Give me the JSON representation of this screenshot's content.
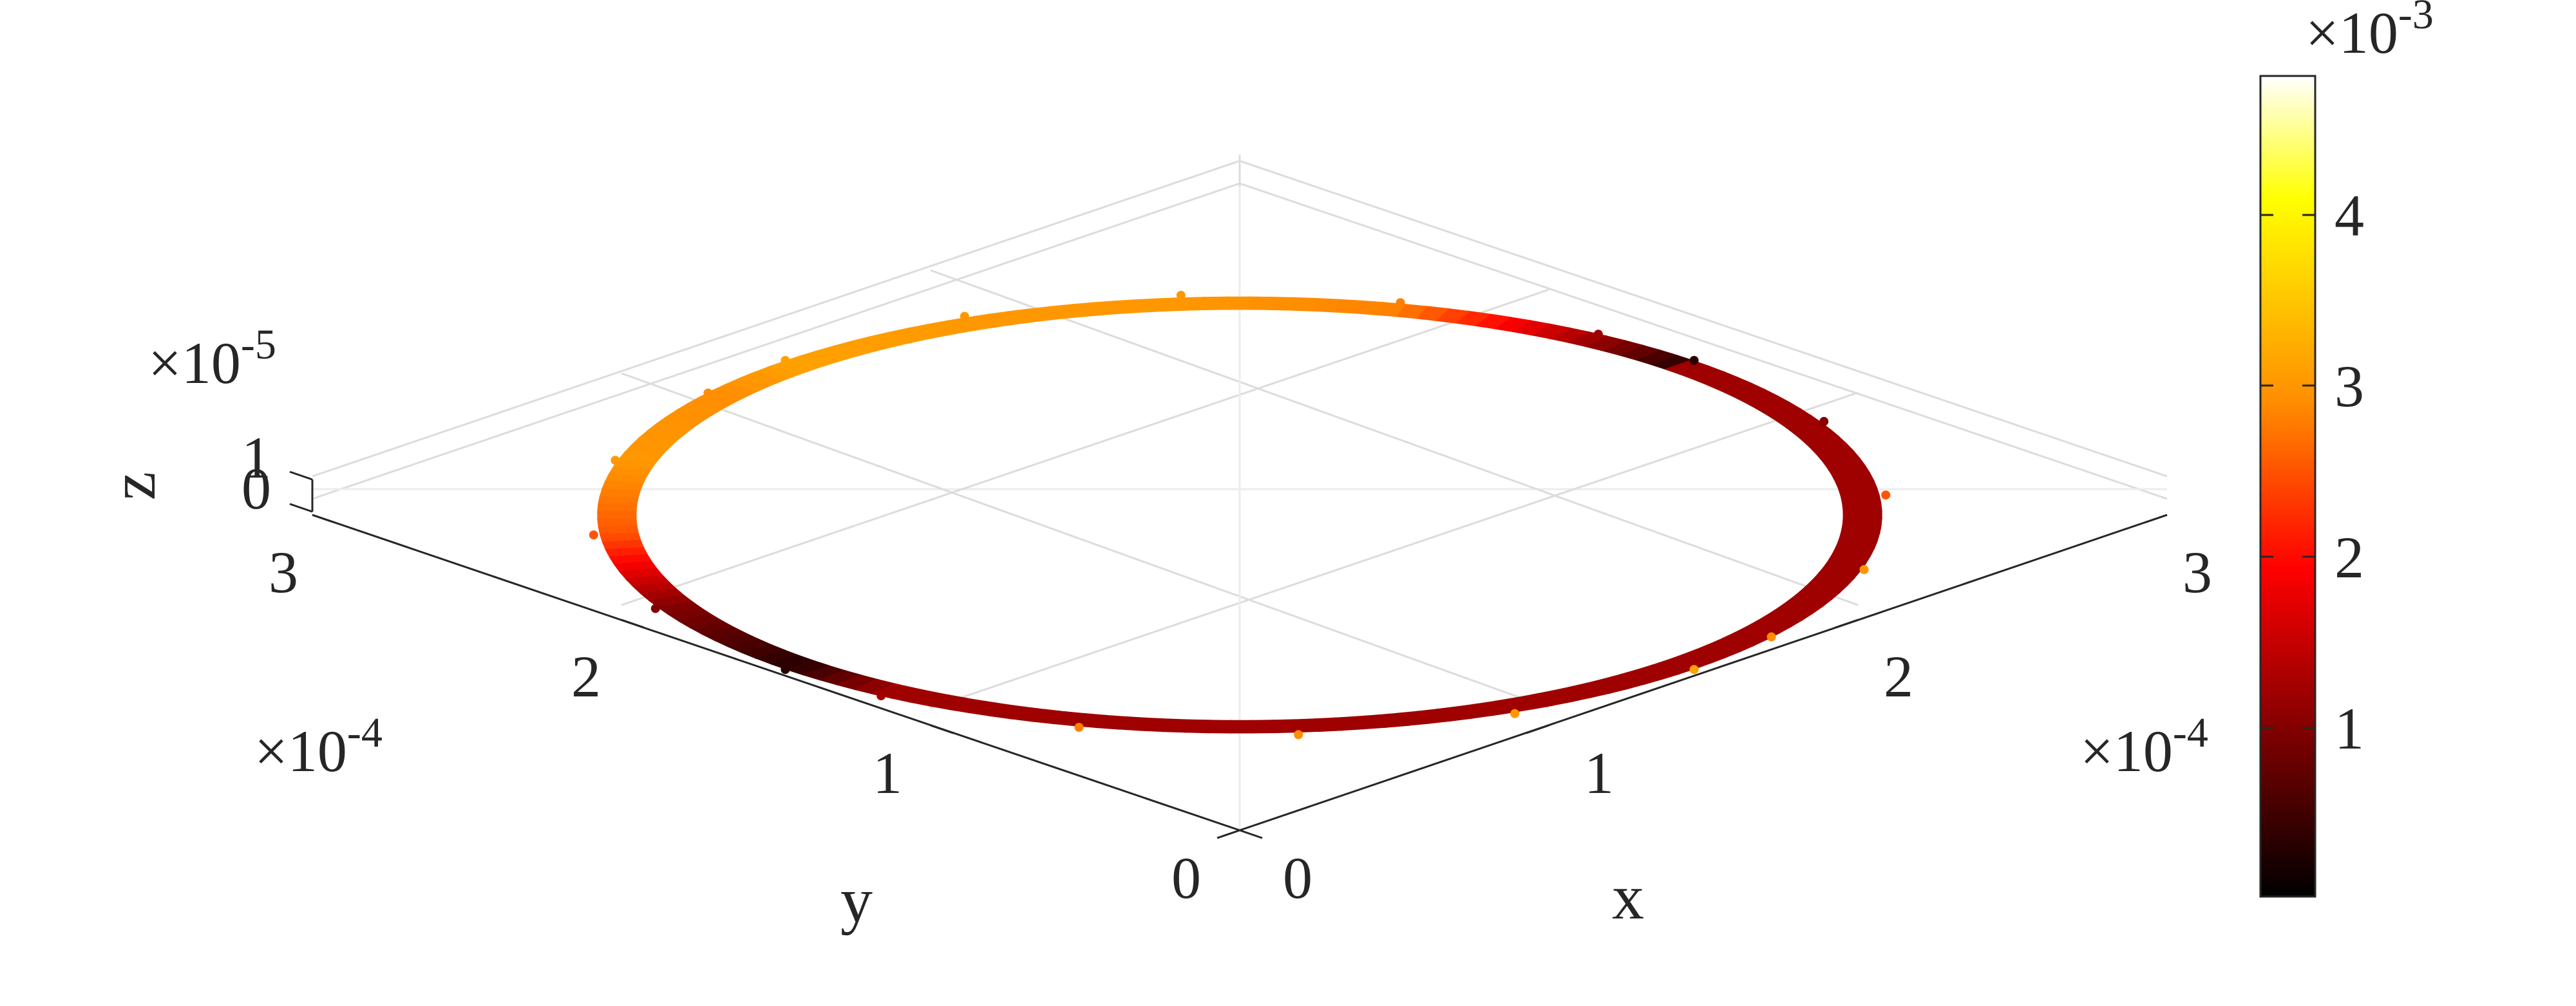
{
  "chart_data": {
    "type": "scatter3d",
    "title": "",
    "xlabel": "x",
    "ylabel": "y",
    "zlabel": "z",
    "xlim": [
      0,
      0.0003
    ],
    "ylim": [
      0,
      0.0003
    ],
    "zlim": [
      0,
      1e-05
    ],
    "x_ticks": [
      "0",
      "1",
      "2",
      "3"
    ],
    "y_ticks": [
      "0",
      "1",
      "2",
      "3"
    ],
    "z_ticks": [
      "0",
      "1"
    ],
    "x_exponent": {
      "base": "×10",
      "power": "-4"
    },
    "y_exponent": {
      "base": "×10",
      "power": "-4"
    },
    "z_exponent": {
      "base": "×10",
      "power": "-5"
    },
    "grid": true,
    "colormap": "hot",
    "colorbar": {
      "location": "right",
      "ticks": [
        "1",
        "2",
        "3",
        "4"
      ],
      "tick_values": [
        0.001,
        0.002,
        0.003,
        0.004
      ],
      "range": [
        0,
        0.0048
      ],
      "exponent": {
        "base": "×10",
        "power": "-3"
      },
      "colors": [
        "#000000",
        "#ff0000",
        "#ff8c00",
        "#ffff00",
        "#ffffff"
      ]
    },
    "series": [
      {
        "shape": "ring",
        "center": {
          "x": 0.00015,
          "y": 0.00015,
          "z": 5e-06
        },
        "radius_outer": 0.000147,
        "radius_inner": 0.000138,
        "points": [
          {
            "x": 0.00015,
            "y": 0.000297,
            "c": 0.0031
          },
          {
            "x": 0.0002,
            "y": 0.000289,
            "c": 0.003
          },
          {
            "x": 0.000245,
            "y": 0.000264,
            "c": 0.003
          },
          {
            "x": 0.000277,
            "y": 0.000225,
            "c": 0.0028
          },
          {
            "x": 0.000294,
            "y": 0.000178,
            "c": 0.0012
          },
          {
            "x": 0.000297,
            "y": 0.00015,
            "c": 0.0003
          },
          {
            "x": 0.000289,
            "y": 0.0001,
            "c": 0.001
          },
          {
            "x": 0.000264,
            "y": 5.5e-05,
            "c": 0.0025
          },
          {
            "x": 0.000225,
            "y": 2.3e-05,
            "c": 0.003
          },
          {
            "x": 0.000178,
            "y": 6e-06,
            "c": 0.0029
          },
          {
            "x": 0.00015,
            "y": 3e-06,
            "c": 0.0031
          },
          {
            "x": 0.0001,
            "y": 1.1e-05,
            "c": 0.003
          },
          {
            "x": 5.5e-05,
            "y": 3.6e-05,
            "c": 0.0029
          },
          {
            "x": 2.3e-05,
            "y": 7.5e-05,
            "c": 0.0028
          },
          {
            "x": 6e-06,
            "y": 0.000122,
            "c": 0.0012
          },
          {
            "x": 3e-06,
            "y": 0.00015,
            "c": 0.0003
          },
          {
            "x": 1.1e-05,
            "y": 0.0002,
            "c": 0.001
          },
          {
            "x": 3.6e-05,
            "y": 0.000245,
            "c": 0.0025
          },
          {
            "x": 7.5e-05,
            "y": 0.000277,
            "c": 0.003
          },
          {
            "x": 0.000122,
            "y": 0.000294,
            "c": 0.0029
          }
        ]
      }
    ]
  }
}
